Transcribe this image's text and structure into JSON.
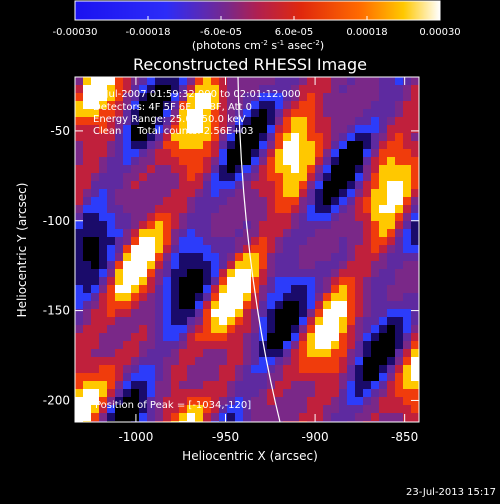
{
  "colorbar": {
    "tick_labels": [
      "-0.00030",
      "-0.00018",
      "-6.0e-05",
      "6.0e-05",
      "0.00018",
      "0.00030"
    ],
    "tick_values": [
      -0.0003,
      -0.00018,
      -6e-05,
      6e-05,
      0.00018,
      0.0003
    ],
    "range": [
      -0.0003,
      0.0003
    ],
    "units_text": "(photons cm",
    "units_exp1": "-2",
    "units_mid": " s",
    "units_exp2": "-1",
    "units_end": " asec",
    "units_exp3": "-2",
    "units_close": ")"
  },
  "chart_data": {
    "type": "heatmap",
    "title": "Reconstructed RHESSI Image",
    "xlabel": "Heliocentric X (arcsec)",
    "ylabel": "Heliocentric Y (arcsec)",
    "xlim": [
      -1034,
      -842
    ],
    "ylim": [
      -212,
      -20
    ],
    "x_ticks": [
      -1000,
      -950,
      -900,
      -850
    ],
    "x_tick_labels": [
      "-1000",
      "-950",
      "-900",
      "-850"
    ],
    "y_ticks": [
      -200,
      -150,
      -100,
      -50
    ],
    "y_tick_labels": [
      "-200",
      "-150",
      "-100",
      "-50"
    ],
    "colormap": [
      "#000000",
      "#1a0b6a",
      "#2c3cfa",
      "#5e2aa0",
      "#7a2888",
      "#c0203c",
      "#f03c0c",
      "#ffc800",
      "#ffffff"
    ],
    "annotations": {
      "time": "8-Jul-2007 01:59:32.000 to 02:01:12.000",
      "detectors": "Detectors: 4F 5F 6F 7F 8F, Att 0",
      "energy": "Energy Range: 25.0 - 50.0 keV",
      "clean": "Clean     Total counts: 2.56E+03",
      "peak": "Position of Peak = [-1034,-120]"
    },
    "peak_position": [
      -1034,
      -120
    ]
  },
  "footer": {
    "date": "23-Jul-2013 15:17"
  }
}
